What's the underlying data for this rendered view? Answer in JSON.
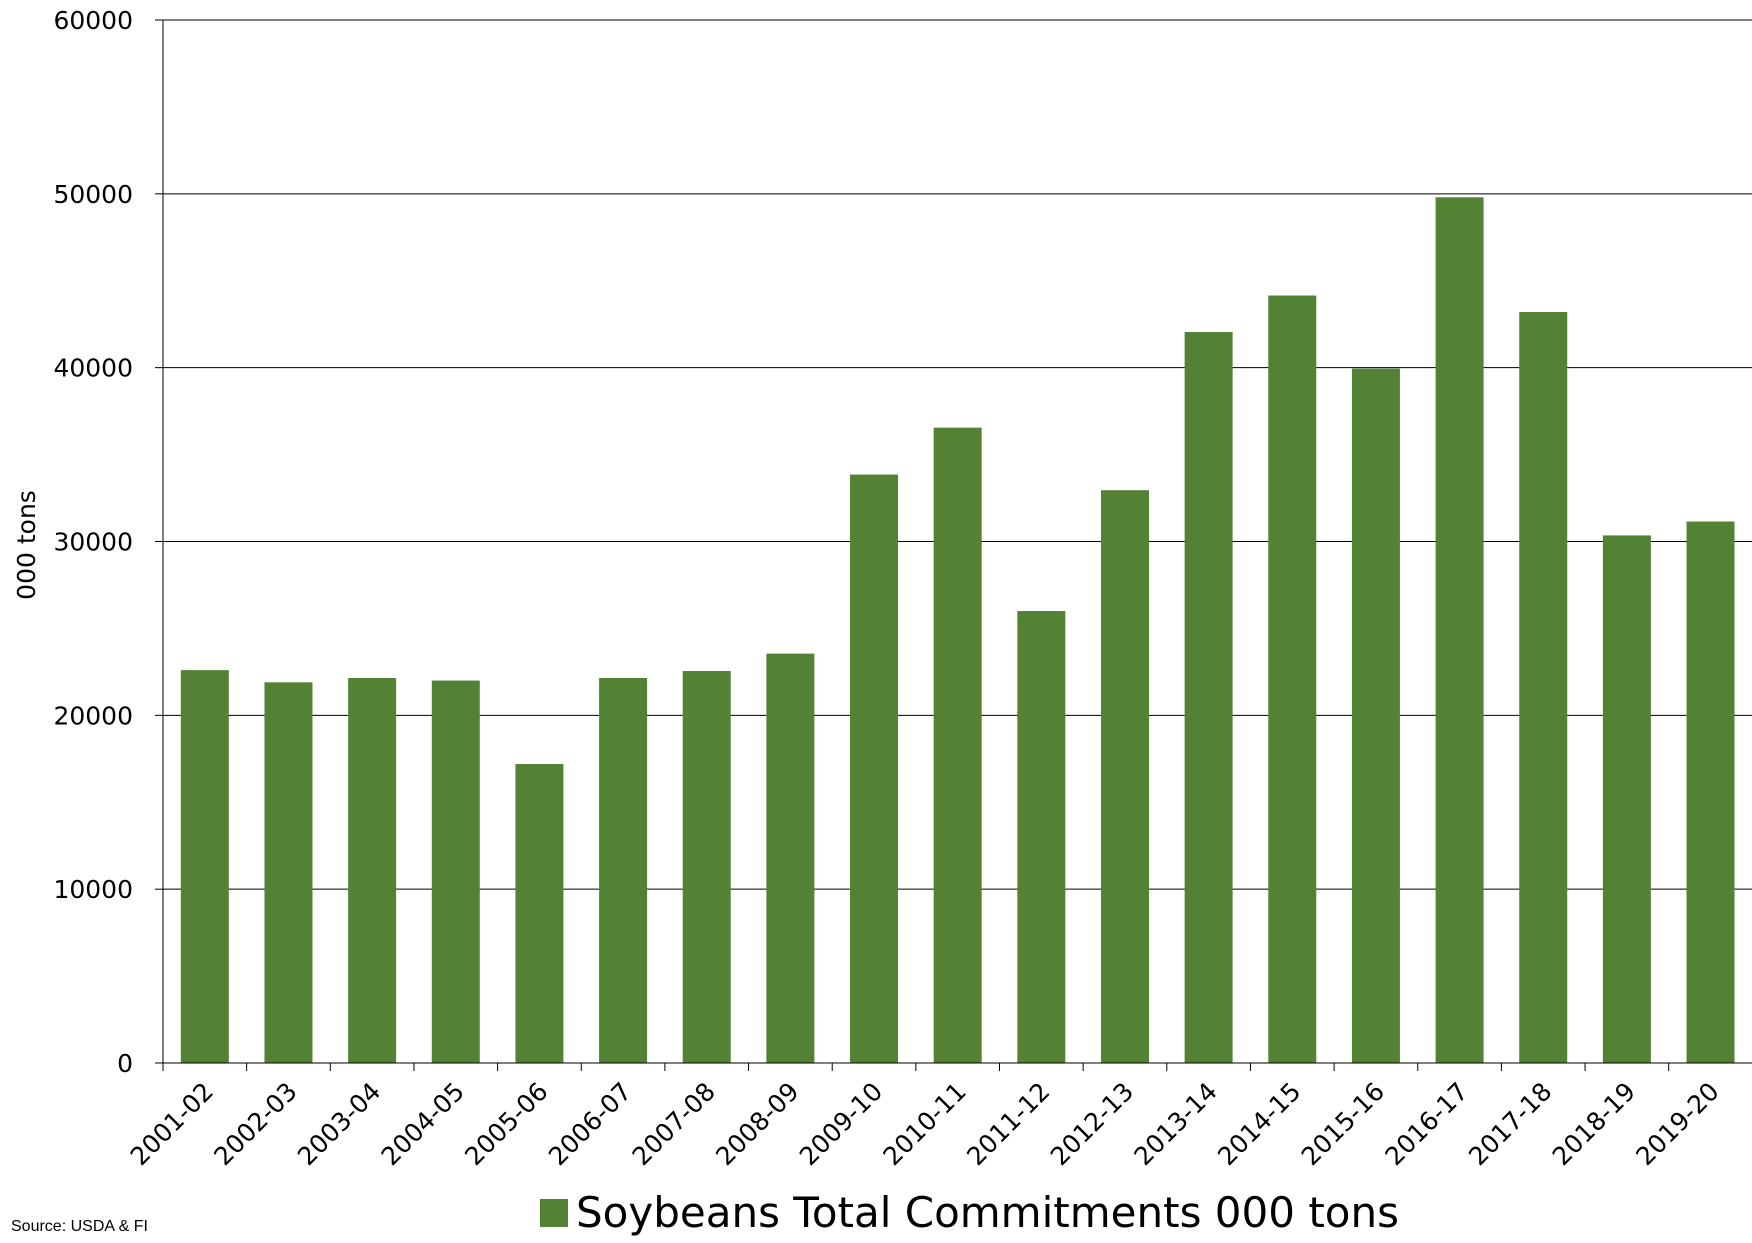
{
  "chart_data": {
    "type": "bar",
    "categories": [
      "2001-02",
      "2002-03",
      "2003-04",
      "2004-05",
      "2005-06",
      "2006-07",
      "2007-08",
      "2008-09",
      "2009-10",
      "2010-11",
      "2011-12",
      "2012-13",
      "2013-14",
      "2014-15",
      "2015-16",
      "2016-17",
      "2017-18",
      "2018-19",
      "2019-20"
    ],
    "series": [
      {
        "name": "Soybeans Total Commitments 000 tons",
        "values": [
          22600,
          21900,
          22150,
          22000,
          17200,
          22150,
          22550,
          23550,
          33850,
          36550,
          26000,
          32950,
          42050,
          44150,
          39950,
          49800,
          43200,
          30350,
          31150
        ],
        "color": "#548235"
      }
    ],
    "ylabel": "000 tons",
    "ylim": [
      0,
      60000
    ],
    "yticks": [
      0,
      10000,
      20000,
      30000,
      40000,
      50000,
      60000
    ],
    "grid": true,
    "legend": "bottom"
  },
  "source_note": "Source: USDA & FI"
}
